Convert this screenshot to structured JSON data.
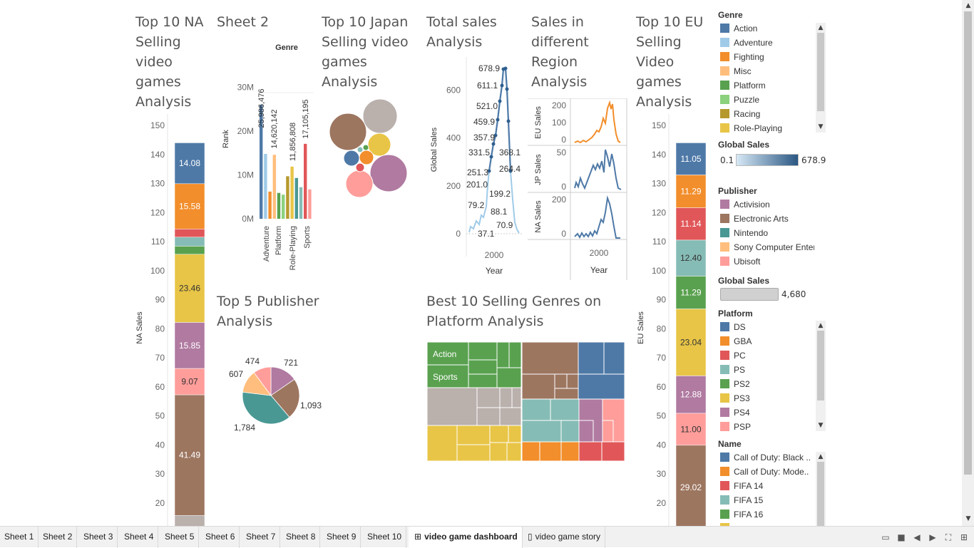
{
  "titles": {
    "na": "Top 10 NA Selling video games Analysis",
    "sheet2": "Sheet 2",
    "japan": "Top 10 Japan Selling video games Analysis",
    "total": "Total sales Analysis",
    "region": "Sales in different Region Analysis",
    "eu": "Top 10 EU Selling Video games Analysis",
    "publisher": "Top 5 Publisher Analysis",
    "genres": "Best 10 Selling Genres on Platform Analysis"
  },
  "colors": {
    "blue": "#4e79a7",
    "lightblue": "#a0cbe8",
    "orange": "#f28e2b",
    "lightorange": "#ffbe7d",
    "green": "#59a14f",
    "lightgreen": "#8cd17d",
    "olive": "#b6992d",
    "yellow": "#e8c547",
    "teal": "#499894",
    "lightteal": "#86bcb6",
    "red": "#e15759",
    "pink": "#ff9d9a",
    "gray": "#bab0ac",
    "purple": "#b07aa1",
    "brown": "#9d7660"
  },
  "na_chart": {
    "ylabel": "NA Sales",
    "ticks": [
      "150",
      "140",
      "130",
      "120",
      "110",
      "100",
      "90",
      "80",
      "70",
      "60",
      "50",
      "40",
      "30",
      "20"
    ],
    "segments": [
      {
        "label": "14.08",
        "value": 14.08,
        "color": "#4e79a7"
      },
      {
        "label": "15.58",
        "value": 15.58,
        "color": "#f28e2b"
      },
      {
        "label": "",
        "value": 2.8,
        "color": "#e15759"
      },
      {
        "label": "",
        "value": 3.1,
        "color": "#86bcb6"
      },
      {
        "label": "",
        "value": 2.8,
        "color": "#59a14f"
      },
      {
        "label": "23.46",
        "value": 23.46,
        "color": "#e8c547"
      },
      {
        "label": "15.85",
        "value": 15.85,
        "color": "#b07aa1"
      },
      {
        "label": "9.07",
        "value": 9.07,
        "color": "#ff9d9a"
      },
      {
        "label": "41.49",
        "value": 41.49,
        "color": "#9d7660"
      },
      {
        "label": "",
        "value": 6.3,
        "color": "#bab0ac"
      }
    ]
  },
  "eu_chart": {
    "ylabel": "EU Sales",
    "ticks": [
      "150",
      "140",
      "130",
      "120",
      "110",
      "100",
      "90",
      "80",
      "70",
      "60",
      "50",
      "40",
      "30",
      "20"
    ],
    "segments": [
      {
        "label": "11.05",
        "value": 11.05,
        "color": "#4e79a7"
      },
      {
        "label": "11.29",
        "value": 11.29,
        "color": "#f28e2b"
      },
      {
        "label": "11.14",
        "value": 11.14,
        "color": "#e15759"
      },
      {
        "label": "12.40",
        "value": 12.4,
        "color": "#86bcb6"
      },
      {
        "label": "11.29",
        "value": 11.29,
        "color": "#59a14f"
      },
      {
        "label": "23.04",
        "value": 23.04,
        "color": "#e8c547"
      },
      {
        "label": "12.88",
        "value": 12.88,
        "color": "#b07aa1"
      },
      {
        "label": "11.00",
        "value": 11.0,
        "color": "#ff9d9a"
      },
      {
        "label": "29.02",
        "value": 29.02,
        "color": "#9d7660"
      }
    ]
  },
  "sheet2_chart": {
    "header": "Genre",
    "ylabel": "Rank",
    "ticks": [
      "30M",
      "20M",
      "10M",
      "0M"
    ],
    "labels": [
      {
        "text": "25,986,476",
        "value": 25986476
      },
      {
        "text": "14,620,142",
        "value": 14620142
      },
      {
        "text": "11,856,808",
        "value": 11856808
      },
      {
        "text": "17,105,195",
        "value": 17105195
      }
    ],
    "categories": [
      "Adventure",
      "Platform",
      "Role-Playing",
      "Sports"
    ],
    "bars": [
      {
        "value": 26.0,
        "color": "#4e79a7"
      },
      {
        "value": 14.8,
        "color": "#a0cbe8"
      },
      {
        "value": 6.2,
        "color": "#f28e2b"
      },
      {
        "value": 14.6,
        "color": "#ffbe7d"
      },
      {
        "value": 5.9,
        "color": "#59a14f"
      },
      {
        "value": 5.5,
        "color": "#8cd17d"
      },
      {
        "value": 9.7,
        "color": "#b6992d"
      },
      {
        "value": 11.9,
        "color": "#e8c547"
      },
      {
        "value": 9.3,
        "color": "#499894"
      },
      {
        "value": 7.2,
        "color": "#86bcb6"
      },
      {
        "value": 17.1,
        "color": "#e15759"
      },
      {
        "value": 6.7,
        "color": "#ff9d9a"
      }
    ]
  },
  "total_chart": {
    "ylabel": "Global Sales",
    "xlabel": "Year",
    "xtick": "2000",
    "ticks": [
      "600",
      "400",
      "200",
      "0"
    ],
    "labels": [
      "678.9",
      "611.1",
      "521.0",
      "459.9",
      "357.9",
      "331.5",
      "368.1",
      "264.4",
      "251.3",
      "201.0",
      "199.2",
      "79.2",
      "88.1",
      "70.9",
      "37.1"
    ]
  },
  "region_chart": {
    "xlabel": "Year",
    "xtick": "2000",
    "rows": [
      {
        "label": "EU Sales",
        "ticks": [
          "200",
          "100",
          "0"
        ],
        "color": "#f28e2b"
      },
      {
        "label": "JP Sales",
        "ticks": [
          "50",
          "0"
        ],
        "color": "#4e79a7"
      },
      {
        "label": "NA Sales",
        "ticks": [
          "200",
          "0"
        ],
        "color": "#4e79a7"
      }
    ]
  },
  "publisher_chart": {
    "labels": [
      "474",
      "721",
      "607",
      "1,093",
      "1,784"
    ],
    "slices": [
      {
        "name": "Activision",
        "value": 721,
        "color": "#b07aa1"
      },
      {
        "name": "Electronic Arts",
        "value": 1093,
        "color": "#9d7660"
      },
      {
        "name": "Nintendo",
        "value": 1784,
        "color": "#499894"
      },
      {
        "name": "Sony Computer Entertainment",
        "value": 607,
        "color": "#ffbe7d"
      },
      {
        "name": "Ubisoft",
        "value": 474,
        "color": "#ff9d9a"
      }
    ]
  },
  "treemap": {
    "labels": [
      "Action",
      "Sports"
    ]
  },
  "legends": {
    "genre": {
      "title": "Genre",
      "items": [
        {
          "label": "Action",
          "color": "#4e79a7"
        },
        {
          "label": "Adventure",
          "color": "#a0cbe8"
        },
        {
          "label": "Fighting",
          "color": "#f28e2b"
        },
        {
          "label": "Misc",
          "color": "#ffbe7d"
        },
        {
          "label": "Platform",
          "color": "#59a14f"
        },
        {
          "label": "Puzzle",
          "color": "#8cd17d"
        },
        {
          "label": "Racing",
          "color": "#b6992d"
        },
        {
          "label": "Role-Playing",
          "color": "#e8c547"
        }
      ]
    },
    "global_sales": {
      "title": "Global Sales",
      "min": "0.1",
      "max": "678.9"
    },
    "publisher": {
      "title": "Publisher",
      "items": [
        {
          "label": "Activision",
          "color": "#b07aa1"
        },
        {
          "label": "Electronic Arts",
          "color": "#9d7660"
        },
        {
          "label": "Nintendo",
          "color": "#499894"
        },
        {
          "label": "Sony Computer Enter..",
          "color": "#ffbe7d"
        },
        {
          "label": "Ubisoft",
          "color": "#ff9d9a"
        }
      ]
    },
    "global_sales_size": {
      "title": "Global Sales",
      "value": "4,680"
    },
    "platform": {
      "title": "Platform",
      "items": [
        {
          "label": "DS",
          "color": "#4e79a7"
        },
        {
          "label": "GBA",
          "color": "#f28e2b"
        },
        {
          "label": "PC",
          "color": "#e15759"
        },
        {
          "label": "PS",
          "color": "#86bcb6"
        },
        {
          "label": "PS2",
          "color": "#59a14f"
        },
        {
          "label": "PS3",
          "color": "#e8c547"
        },
        {
          "label": "PS4",
          "color": "#b07aa1"
        },
        {
          "label": "PSP",
          "color": "#ff9d9a"
        }
      ]
    },
    "name": {
      "title": "Name",
      "items": [
        {
          "label": "Call of Duty: Black ..",
          "color": "#4e79a7"
        },
        {
          "label": "Call of Duty: Mode..",
          "color": "#f28e2b"
        },
        {
          "label": "FIFA 14",
          "color": "#e15759"
        },
        {
          "label": "FIFA 15",
          "color": "#86bcb6"
        },
        {
          "label": "FIFA 16",
          "color": "#59a14f"
        }
      ]
    }
  },
  "tabs": [
    "Sheet 1",
    "Sheet 2",
    "Sheet 3",
    "Sheet 4",
    "Sheet 5",
    "Sheet 6",
    "Sheet 7",
    "Sheet 8",
    "Sheet 9",
    "Sheet 10",
    "video game dashboard",
    "video game story"
  ],
  "tab_icons": {
    "dashboard": "dashboard-grid-icon",
    "story": "story-book-icon"
  }
}
